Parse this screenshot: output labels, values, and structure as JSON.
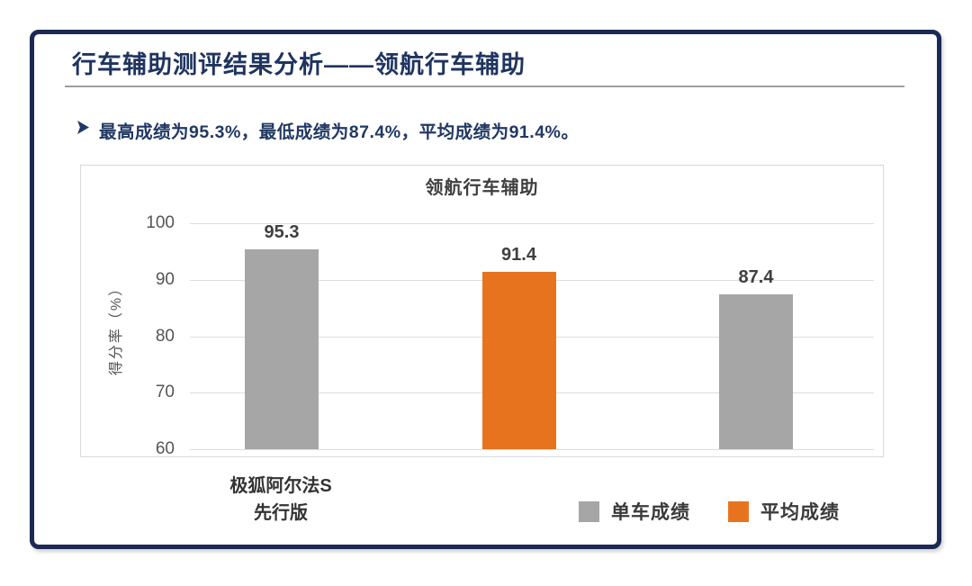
{
  "slide": {
    "title": "行车辅助测评结果分析——领航行车辅助",
    "bullet": {
      "icon": "arrowhead-right",
      "text": "最高成绩为95.3%，最低成绩为87.4%，平均成绩为91.4%。"
    },
    "colors": {
      "card_border_navy": "#1b2a55",
      "title_navy": "#1f3460",
      "bullet_navy": "#203864",
      "bar_gray": "#a6a6a6",
      "bar_orange": "#e8731f",
      "gridline": "#dcdcdc",
      "panel_border": "#d9d9d9"
    }
  },
  "chart_data": {
    "type": "bar",
    "title": "领航行车辅助",
    "xlabel": "",
    "ylabel": "得分率（%）",
    "ylim": [
      60,
      100
    ],
    "yticks": [
      100,
      90,
      80,
      70,
      60
    ],
    "grid": true,
    "legend_position": "bottom",
    "bars": [
      {
        "category": "极狐阿尔法S\n先行版",
        "value": 95.3,
        "label": "95.3",
        "series": "单车成绩"
      },
      {
        "category": "",
        "value": 91.4,
        "label": "91.4",
        "series": "平均成绩"
      },
      {
        "category": "",
        "value": 87.4,
        "label": "87.4",
        "series": "单车成绩"
      }
    ],
    "series_colors": {
      "单车成绩": "#a6a6a6",
      "平均成绩": "#e8731f"
    },
    "legend": [
      {
        "label": "单车成绩",
        "color": "#a6a6a6"
      },
      {
        "label": "平均成绩",
        "color": "#e8731f"
      }
    ]
  }
}
